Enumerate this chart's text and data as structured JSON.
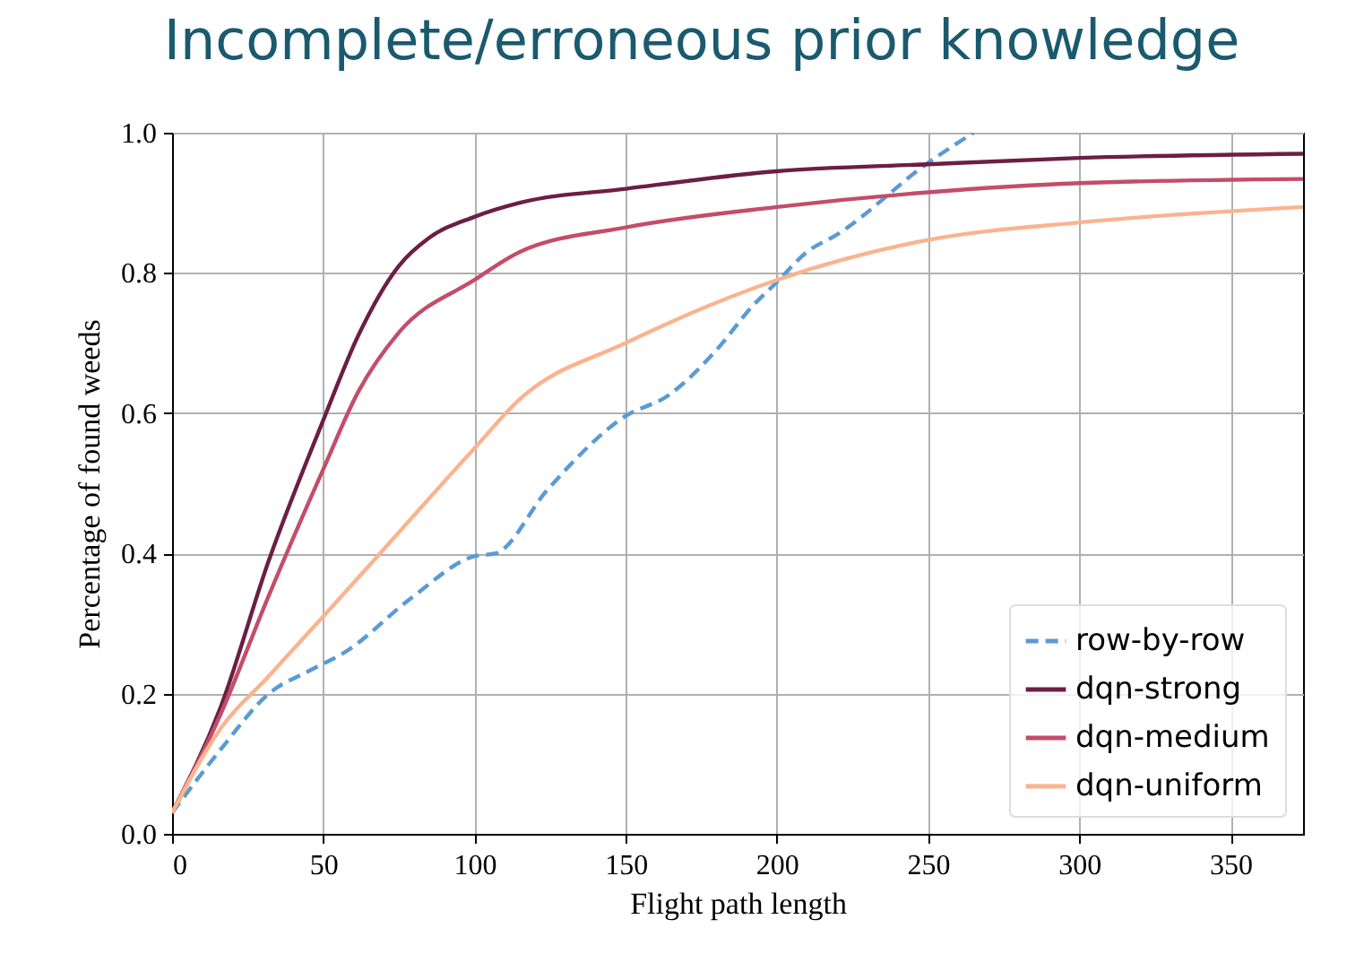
{
  "chart_data": {
    "type": "line",
    "title": "Incomplete/erroneous prior knowledge",
    "xlabel": "Flight path length",
    "ylabel": "Percentage of found weeds",
    "xlim": [
      0,
      374
    ],
    "ylim": [
      0,
      1
    ],
    "xticks": [
      0,
      50,
      100,
      150,
      200,
      250,
      300,
      350
    ],
    "yticks": [
      {
        "value": 0,
        "label": "0.0"
      },
      {
        "value": 0.2,
        "label": "0.2"
      },
      {
        "value": 0.4,
        "label": "0.4"
      },
      {
        "value": 0.6,
        "label": "0.6"
      },
      {
        "value": 0.8,
        "label": "0.8"
      },
      {
        "value": 1,
        "label": "1.0"
      }
    ],
    "grid": true,
    "legend": "bottom right",
    "series": [
      {
        "name": "row-by-row",
        "color": "#5b9bd5",
        "line_style": "dashed",
        "x": [
          0,
          16,
          32,
          46,
          57.5,
          79,
          100,
          107,
          124,
          150,
          164,
          180,
          192,
          200,
          210,
          220,
          250,
          265
        ],
        "values": [
          0.03,
          0.12,
          0.2,
          0.234,
          0.26,
          0.336,
          0.396,
          0.4,
          0.49,
          0.596,
          0.625,
          0.69,
          0.753,
          0.787,
          0.83,
          0.855,
          0.957,
          1.0
        ]
      },
      {
        "name": "dqn-strong",
        "color": "#6b1f45",
        "line_style": "solid",
        "x": [
          0,
          16,
          32,
          50,
          61.5,
          75,
          85,
          100,
          115,
          150,
          200,
          250,
          300,
          374
        ],
        "values": [
          0.03,
          0.18,
          0.39,
          0.59,
          0.71,
          0.81,
          0.85,
          0.88,
          0.9,
          0.92,
          0.945,
          0.955,
          0.964,
          0.97
        ]
      },
      {
        "name": "dqn-medium",
        "color": "#c44d6a",
        "line_style": "solid",
        "x": [
          0,
          16,
          32,
          50,
          61.5,
          75,
          100,
          115,
          150,
          200,
          250,
          300,
          374
        ],
        "values": [
          0.03,
          0.17,
          0.34,
          0.52,
          0.63,
          0.715,
          0.79,
          0.83,
          0.865,
          0.894,
          0.915,
          0.928,
          0.934
        ]
      },
      {
        "name": "dqn-uniform",
        "color": "#f9b48f",
        "line_style": "solid",
        "x": [
          0,
          16,
          32,
          50,
          75,
          100,
          115,
          150,
          200,
          250,
          300,
          374
        ],
        "values": [
          0.03,
          0.15,
          0.225,
          0.31,
          0.43,
          0.55,
          0.62,
          0.7,
          0.79,
          0.847,
          0.872,
          0.894
        ]
      }
    ]
  }
}
